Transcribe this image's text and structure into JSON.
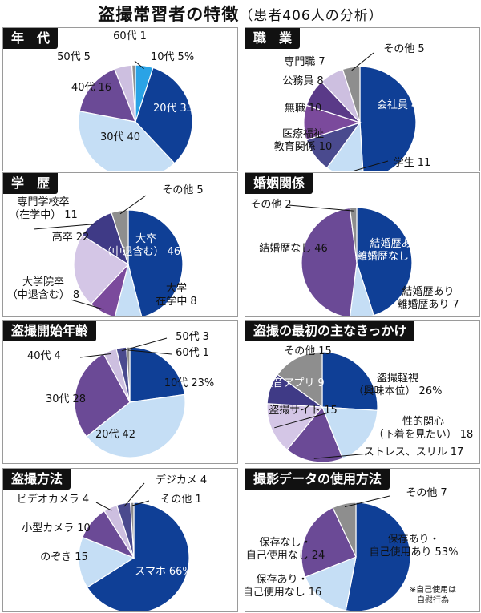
{
  "page": {
    "title": "盗撮常習者の特徴",
    "subtitle": "（患者406人の分析）"
  },
  "chart_data": [
    {
      "type": "pie",
      "title": "年　代",
      "slices": [
        {
          "label": "10代",
          "value": 5,
          "unit": "%",
          "color": "#2aa3e6"
        },
        {
          "label": "20代",
          "value": 33,
          "color": "#0f3f96"
        },
        {
          "label": "30代",
          "value": 40,
          "color": "#c5def5"
        },
        {
          "label": "40代",
          "value": 16,
          "color": "#6b4a96"
        },
        {
          "label": "50代",
          "value": 5,
          "color": "#cdbfe0"
        },
        {
          "label": "60代",
          "value": 1,
          "color": "#8e8e8e"
        }
      ]
    },
    {
      "type": "pie",
      "title": "職　業",
      "slices": [
        {
          "label": "会社員",
          "value": 49,
          "unit": "%",
          "color": "#0f3f96"
        },
        {
          "label": "学生",
          "value": 11,
          "color": "#c5def5"
        },
        {
          "label": "医療福祉\n教育関係",
          "value": 10,
          "color": "#4a4a8e"
        },
        {
          "label": "無職",
          "value": 10,
          "color": "#7b4a9c"
        },
        {
          "label": "公務員",
          "value": 8,
          "color": "#5a3a88"
        },
        {
          "label": "専門職",
          "value": 7,
          "color": "#cdbfe0"
        },
        {
          "label": "その他",
          "value": 5,
          "color": "#8e8e8e"
        }
      ]
    },
    {
      "type": "pie",
      "title": "学　歴",
      "slices": [
        {
          "label": "大卒\n（中退含む）",
          "value": 46,
          "unit": "%",
          "color": "#0f3f96"
        },
        {
          "label": "大学\n在学中",
          "value": 8,
          "color": "#c5def5"
        },
        {
          "label": "大学院卒\n（中退含む）",
          "value": 8,
          "color": "#7b4a9c"
        },
        {
          "label": "高卒",
          "value": 22,
          "color": "#d4c6e6"
        },
        {
          "label": "専門学校卒\n（在学中）",
          "value": 11,
          "color": "#3f3a86"
        },
        {
          "label": "その他",
          "value": 5,
          "color": "#8e8e8e"
        }
      ]
    },
    {
      "type": "pie",
      "title": "婚姻関係",
      "slices": [
        {
          "label": "結婚歴あり\n離婚歴なし",
          "value": 45,
          "unit": "%",
          "color": "#0f3f96"
        },
        {
          "label": "結婚歴あり\n離婚歴あり",
          "value": 7,
          "color": "#c5def5"
        },
        {
          "label": "結婚歴なし",
          "value": 46,
          "color": "#6b4a96"
        },
        {
          "label": "その他",
          "value": 2,
          "color": "#8e8e8e"
        }
      ]
    },
    {
      "type": "pie",
      "title": "盗撮開始年齢",
      "slices": [
        {
          "label": "10代",
          "value": 23,
          "unit": "%",
          "color": "#0f3f96"
        },
        {
          "label": "20代",
          "value": 42,
          "color": "#c5def5"
        },
        {
          "label": "30代",
          "value": 28,
          "color": "#6b4a96"
        },
        {
          "label": "40代",
          "value": 4,
          "color": "#cdbfe0"
        },
        {
          "label": "50代",
          "value": 3,
          "color": "#4a4a8e"
        },
        {
          "label": "60代",
          "value": 1,
          "color": "#8e8e8e"
        }
      ]
    },
    {
      "type": "pie",
      "title": "盗撮の最初の主なきっかけ",
      "slices": [
        {
          "label": "盗撮軽視\n（興味本位）",
          "value": 26,
          "unit": "%",
          "color": "#0f3f96"
        },
        {
          "label": "性的関心\n（下着を見たい）",
          "value": 18,
          "color": "#c5def5"
        },
        {
          "label": "ストレス、スリル",
          "value": 17,
          "color": "#6b4a96"
        },
        {
          "label": "盗撮サイト",
          "value": 15,
          "color": "#d4c6e6"
        },
        {
          "label": "無音アプリ",
          "value": 9,
          "color": "#3f3a86"
        },
        {
          "label": "その他",
          "value": 15,
          "color": "#8e8e8e"
        }
      ]
    },
    {
      "type": "pie",
      "title": "盗撮方法",
      "slices": [
        {
          "label": "スマホ",
          "value": 66,
          "unit": "%",
          "color": "#0f3f96"
        },
        {
          "label": "のぞき",
          "value": 15,
          "color": "#c5def5"
        },
        {
          "label": "小型カメラ",
          "value": 10,
          "color": "#6b4a96"
        },
        {
          "label": "ビデオカメラ",
          "value": 4,
          "color": "#cdbfe0"
        },
        {
          "label": "デジカメ",
          "value": 4,
          "color": "#4a4a8e"
        },
        {
          "label": "その他",
          "value": 1,
          "color": "#8e8e8e"
        }
      ]
    },
    {
      "type": "pie",
      "title": "撮影データの使用方法",
      "note": "※自己使用は\n自慰行為",
      "slices": [
        {
          "label": "保存あり・\n自己使用あり",
          "value": 53,
          "unit": "%",
          "color": "#0f3f96"
        },
        {
          "label": "保存あり・\n自己使用なし",
          "value": 16,
          "color": "#c5def5"
        },
        {
          "label": "保存なし・\n自己使用なし",
          "value": 24,
          "color": "#6b4a96"
        },
        {
          "label": "その他",
          "value": 7,
          "color": "#8e8e8e"
        }
      ]
    }
  ]
}
